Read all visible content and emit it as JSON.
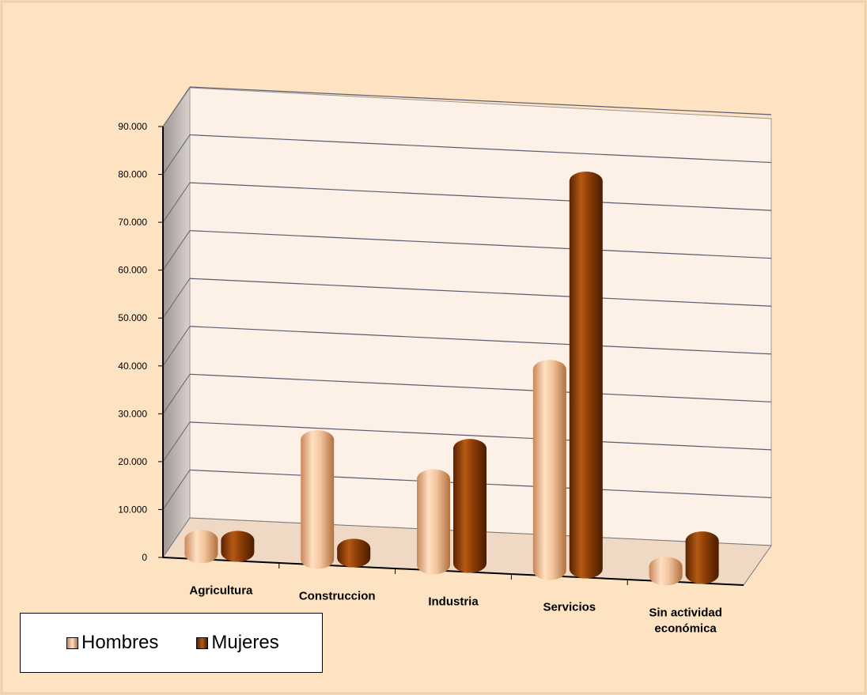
{
  "chart_data": {
    "type": "bar",
    "categories": [
      "Agricultura",
      "Construccion",
      "Industria",
      "Servicios",
      "Sin actividad|económica"
    ],
    "series": [
      {
        "name": "Hombres",
        "values": [
          3000,
          25000,
          18000,
          42000,
          2000
        ],
        "color": "#e8b88e"
      },
      {
        "name": "Mujeres",
        "values": [
          2500,
          2000,
          24000,
          81000,
          7000
        ],
        "color": "#8b3d05"
      }
    ],
    "ylim": [
      0,
      90000
    ],
    "yticks": [
      "0",
      "10.000",
      "20.000",
      "30.000",
      "40.000",
      "50.000",
      "60.000",
      "70.000",
      "80.000",
      "90.000"
    ],
    "grid": true,
    "legend_position": "bottom-left",
    "xlabel": "",
    "ylabel": "",
    "title": ""
  },
  "colors": {
    "page_background": "#fde3c2",
    "wall": "#fdf0e6",
    "side_wall": "#c9c3c0",
    "floor": "#f0d9c4"
  }
}
